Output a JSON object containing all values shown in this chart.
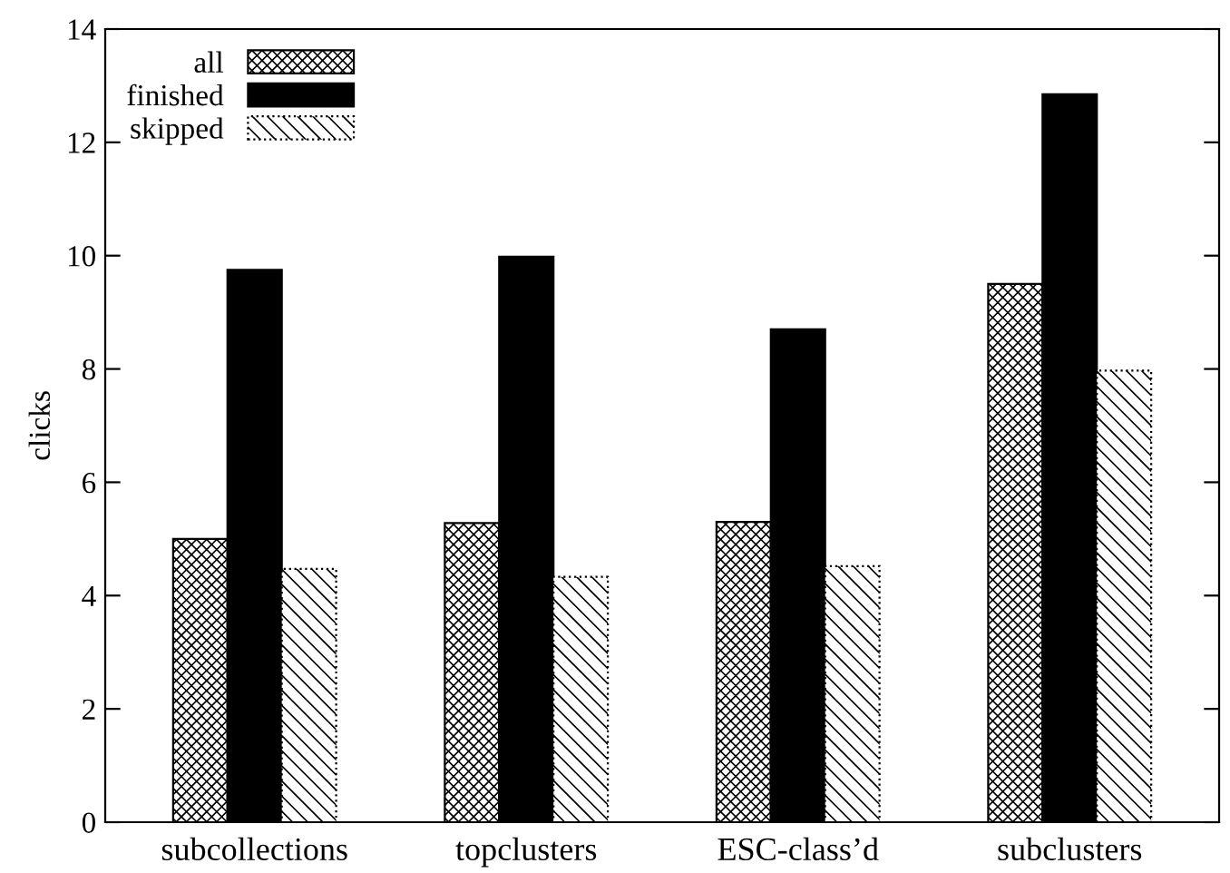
{
  "chart_data": {
    "type": "bar",
    "ylabel": "clicks",
    "categories": [
      "subcollections",
      "topclusters",
      "ESC-class’d",
      "subclusters"
    ],
    "series": [
      {
        "name": "all",
        "color": "#000000",
        "values": [
          5.0,
          5.28,
          5.3,
          9.5
        ]
      },
      {
        "name": "finished",
        "color": "#000000",
        "values": [
          9.75,
          9.98,
          8.7,
          12.85
        ]
      },
      {
        "name": "skipped",
        "color": "#000000",
        "values": [
          4.47,
          4.33,
          4.52,
          7.97
        ]
      }
    ],
    "ylim": [
      0,
      14
    ],
    "yticks": [
      0,
      2,
      4,
      6,
      8,
      10,
      12,
      14
    ],
    "grid": false,
    "legend": "top left"
  }
}
